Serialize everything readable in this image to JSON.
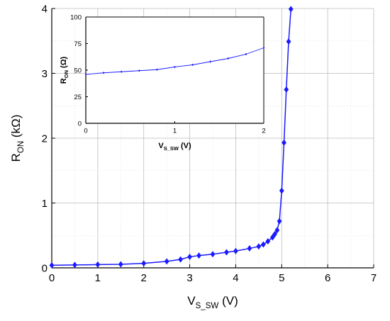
{
  "chart_data": [
    {
      "type": "line",
      "xlabel": "V",
      "xlabel_sub": "S_SW",
      "xlabel_unit": " (V)",
      "ylabel": "R",
      "ylabel_sub": "ON",
      "ylabel_unit": " (kΩ)",
      "xlim": [
        0,
        7
      ],
      "ylim": [
        0,
        4
      ],
      "xticks": [
        "0",
        "1",
        "2",
        "3",
        "4",
        "5",
        "6",
        "7"
      ],
      "yticks": [
        "0",
        "1",
        "2",
        "3",
        "4"
      ],
      "grid": true,
      "marker": "diamond",
      "color": "#1a1aff",
      "series": [
        {
          "x": [
            0,
            0.5,
            1.0,
            1.5,
            2.0,
            2.5,
            2.8,
            3.0,
            3.2,
            3.5,
            3.8,
            4.0,
            4.3,
            4.5,
            4.6,
            4.7,
            4.8,
            4.85,
            4.9,
            4.95,
            5.0,
            5.05,
            5.1,
            5.15,
            5.2
          ],
          "y": [
            0.04,
            0.045,
            0.05,
            0.055,
            0.07,
            0.1,
            0.13,
            0.17,
            0.19,
            0.21,
            0.24,
            0.26,
            0.3,
            0.33,
            0.36,
            0.41,
            0.47,
            0.52,
            0.58,
            0.72,
            1.19,
            1.93,
            2.75,
            3.49,
            3.99
          ]
        }
      ]
    },
    {
      "type": "line",
      "xlabel": "V",
      "xlabel_sub": "S_SW",
      "xlabel_unit": " (V)",
      "ylabel": "R",
      "ylabel_sub": "ON",
      "ylabel_unit": " (Ω)",
      "xlim": [
        0,
        2
      ],
      "ylim": [
        0,
        100
      ],
      "xticks": [
        "0",
        "1",
        "2"
      ],
      "yticks": [
        "0",
        "25",
        "50",
        "75",
        "100"
      ],
      "grid": false,
      "marker": "diamond",
      "color": "#1a1aff",
      "series": [
        {
          "x": [
            0,
            0.2,
            0.4,
            0.6,
            0.8,
            1.0,
            1.2,
            1.4,
            1.6,
            1.8,
            2.0
          ],
          "y": [
            46,
            47.5,
            48.5,
            49.5,
            50.5,
            53,
            55,
            58,
            61,
            65,
            71
          ]
        }
      ]
    }
  ]
}
